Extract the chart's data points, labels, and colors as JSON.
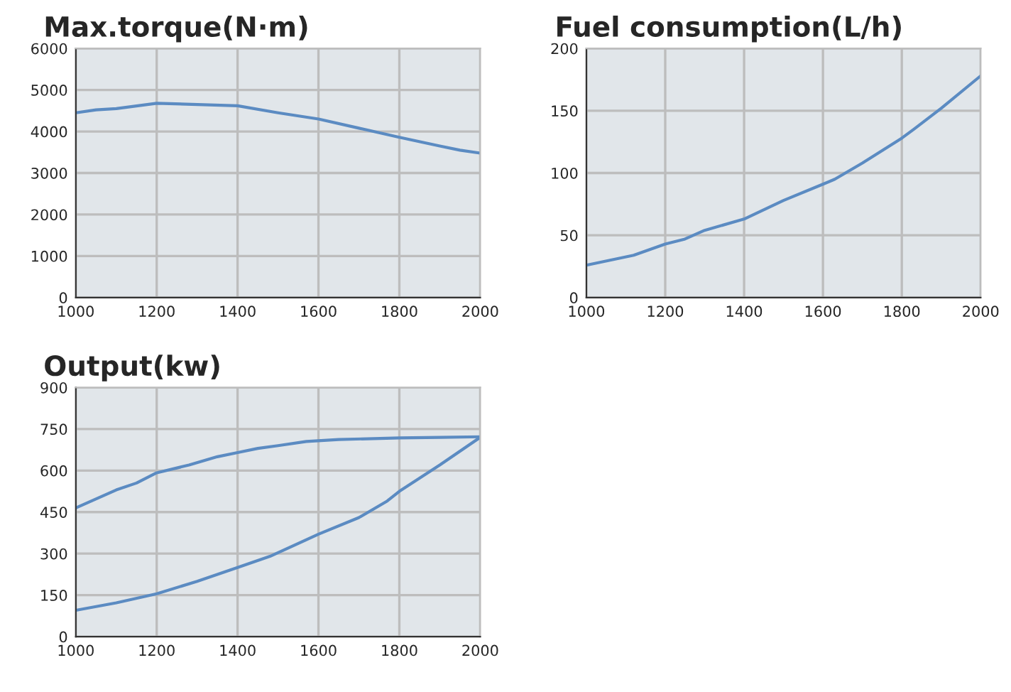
{
  "chart_data": [
    {
      "type": "line",
      "title": "Max.torque(N·m)",
      "grid": true,
      "xlim": [
        1000,
        2000
      ],
      "xticks": [
        1000,
        1200,
        1400,
        1600,
        1800,
        2000
      ],
      "ylim": [
        0,
        6000
      ],
      "yticks": [
        0,
        1000,
        2000,
        3000,
        4000,
        5000,
        6000
      ],
      "series": [
        {
          "color": "#5b8bc2",
          "x": [
            1000,
            1050,
            1100,
            1200,
            1400,
            1500,
            1600,
            1700,
            1800,
            1900,
            1950,
            2000
          ],
          "values": [
            4450,
            4520,
            4550,
            4680,
            4620,
            4450,
            4300,
            4080,
            3860,
            3650,
            3550,
            3480
          ]
        }
      ]
    },
    {
      "type": "line",
      "title": "Fuel consumption(L/h)",
      "grid": true,
      "xlim": [
        1000,
        2000
      ],
      "xticks": [
        1000,
        1200,
        1400,
        1600,
        1800,
        2000
      ],
      "ylim": [
        0,
        200
      ],
      "yticks": [
        0,
        50,
        100,
        150,
        200
      ],
      "series": [
        {
          "color": "#5b8bc2",
          "x": [
            1000,
            1060,
            1120,
            1200,
            1250,
            1300,
            1400,
            1500,
            1600,
            1630,
            1700,
            1800,
            1830,
            1900,
            2000
          ],
          "values": [
            26,
            30,
            34,
            43,
            47,
            54,
            63,
            78,
            91,
            95,
            108,
            128,
            135,
            152,
            178
          ]
        }
      ]
    },
    {
      "type": "line",
      "title": "Output(kw)",
      "grid": true,
      "xlim": [
        1000,
        2000
      ],
      "xticks": [
        1000,
        1200,
        1400,
        1600,
        1800,
        2000
      ],
      "ylim": [
        0,
        900
      ],
      "yticks": [
        0,
        150,
        300,
        450,
        600,
        750,
        900
      ],
      "series": [
        {
          "color": "#5b8bc2",
          "x": [
            1000,
            1100,
            1150,
            1200,
            1280,
            1350,
            1400,
            1450,
            1500,
            1570,
            1650,
            1800,
            1900,
            2000
          ],
          "values": [
            465,
            530,
            555,
            592,
            620,
            650,
            665,
            680,
            690,
            705,
            712,
            718,
            720,
            722
          ]
        },
        {
          "color": "#5b8bc2",
          "x": [
            1000,
            1100,
            1200,
            1300,
            1400,
            1480,
            1600,
            1700,
            1770,
            1800,
            1900,
            2000
          ],
          "values": [
            95,
            122,
            155,
            200,
            250,
            290,
            370,
            430,
            490,
            525,
            620,
            720
          ]
        }
      ]
    }
  ]
}
